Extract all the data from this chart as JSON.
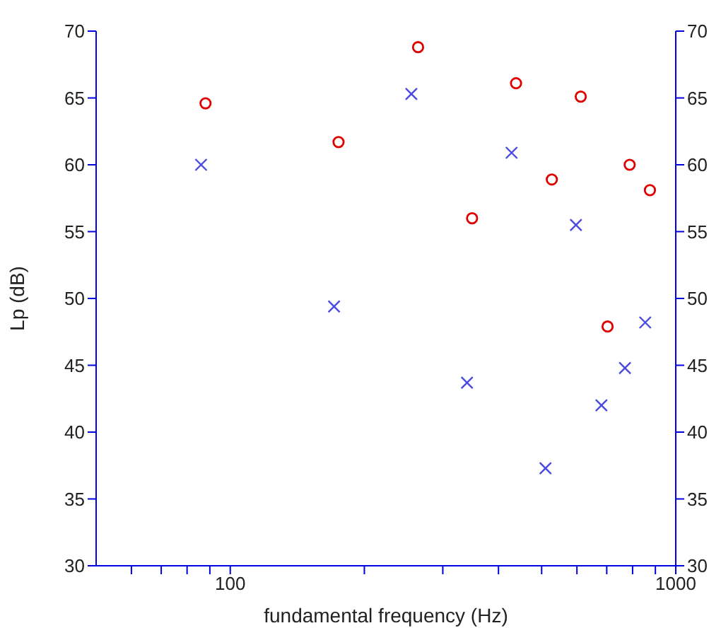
{
  "chart_data": {
    "type": "scatter",
    "xlabel": "fundamental frequency (Hz)",
    "ylabel": "Lp (dB)",
    "log": "x",
    "grid": false,
    "legend": false,
    "xlim": [
      50,
      1000
    ],
    "xticks": [
      {
        "value": 60,
        "label": null
      },
      {
        "value": 70,
        "label": null
      },
      {
        "value": 80,
        "label": null
      },
      {
        "value": 90,
        "label": null
      },
      100,
      {
        "value": 200,
        "label": null
      },
      {
        "value": 300,
        "label": null
      },
      {
        "value": 400,
        "label": null
      },
      {
        "value": 500,
        "label": null
      },
      {
        "value": 600,
        "label": null
      },
      {
        "value": 700,
        "label": null
      },
      {
        "value": 800,
        "label": null
      },
      {
        "value": 900,
        "label": null
      },
      1000
    ],
    "ylim": [
      30,
      70
    ],
    "yticks": [
      30,
      35,
      40,
      45,
      50,
      55,
      60,
      65,
      70
    ],
    "y2lim": [
      30,
      70
    ],
    "y2ticks": [
      30,
      35,
      40,
      45,
      50,
      55,
      60,
      65,
      70
    ],
    "series": [
      {
        "color": "#e00000",
        "marker": "circle",
        "x": [
          88,
          175,
          264,
          349,
          438,
          527,
          612,
          788,
          875,
          703
        ],
        "values": [
          64.6,
          61.7,
          68.8,
          56.0,
          66.1,
          58.9,
          65.1,
          60.0,
          58.1,
          47.9
        ]
      },
      {
        "color": "#4a4ae0",
        "marker": "cross",
        "x": [
          86,
          171,
          255,
          428,
          597,
          340,
          510,
          681,
          769,
          854
        ],
        "values": [
          60.0,
          49.4,
          65.3,
          60.9,
          55.5,
          43.7,
          37.3,
          42.0,
          44.8,
          48.2
        ]
      }
    ]
  }
}
